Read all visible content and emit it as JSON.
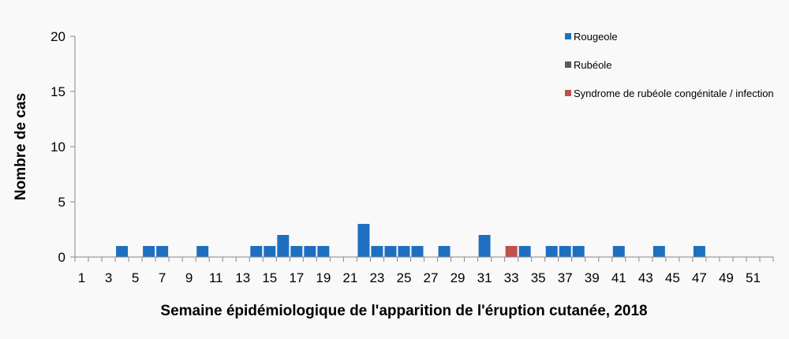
{
  "chart_data": {
    "type": "bar",
    "xlabel": "Semaine épidémiologique de l'apparition de l'éruption cutanée, 2018",
    "ylabel": "Nombre de cas",
    "ylim": [
      0,
      20
    ],
    "yticks": [
      "0",
      "5",
      "10",
      "15",
      "20"
    ],
    "xticks": [
      "1",
      "3",
      "5",
      "7",
      "9",
      "11",
      "13",
      "15",
      "17",
      "19",
      "21",
      "23",
      "25",
      "27",
      "29",
      "31",
      "33",
      "35",
      "37",
      "39",
      "41",
      "43",
      "45",
      "47",
      "49",
      "51"
    ],
    "categories": [
      1,
      2,
      3,
      4,
      5,
      6,
      7,
      8,
      9,
      10,
      11,
      12,
      13,
      14,
      15,
      16,
      17,
      18,
      19,
      20,
      21,
      22,
      23,
      24,
      25,
      26,
      27,
      28,
      29,
      30,
      31,
      32,
      33,
      34,
      35,
      36,
      37,
      38,
      39,
      40,
      41,
      42,
      43,
      44,
      45,
      46,
      47,
      48,
      49,
      50,
      51,
      52
    ],
    "grid": false,
    "stacked": true,
    "legend_position": "top-right",
    "series": [
      {
        "name": "Rougeole",
        "color": "#1f6fc1",
        "values": [
          0,
          0,
          0,
          1,
          0,
          1,
          1,
          0,
          0,
          1,
          0,
          0,
          0,
          1,
          1,
          2,
          1,
          1,
          1,
          0,
          0,
          3,
          1,
          1,
          1,
          1,
          0,
          1,
          0,
          0,
          2,
          0,
          0,
          1,
          0,
          1,
          1,
          1,
          0,
          0,
          1,
          0,
          0,
          1,
          0,
          0,
          1,
          0,
          0,
          0,
          0,
          0
        ]
      },
      {
        "name": "Rubéole",
        "color": "#5a5a5a",
        "values": [
          0,
          0,
          0,
          0,
          0,
          0,
          0,
          0,
          0,
          0,
          0,
          0,
          0,
          0,
          0,
          0,
          0,
          0,
          0,
          0,
          0,
          0,
          0,
          0,
          0,
          0,
          0,
          0,
          0,
          0,
          0,
          0,
          0,
          0,
          0,
          0,
          0,
          0,
          0,
          0,
          0,
          0,
          0,
          0,
          0,
          0,
          0,
          0,
          0,
          0,
          0,
          0
        ]
      },
      {
        "name": "Syndrome de rubéole congénitale / infection",
        "color": "#c0504d",
        "values": [
          0,
          0,
          0,
          0,
          0,
          0,
          0,
          0,
          0,
          0,
          0,
          0,
          0,
          0,
          0,
          0,
          0,
          0,
          0,
          0,
          0,
          0,
          0,
          0,
          0,
          0,
          0,
          0,
          0,
          0,
          0,
          0,
          1,
          0,
          0,
          0,
          0,
          0,
          0,
          0,
          0,
          0,
          0,
          0,
          0,
          0,
          0,
          0,
          0,
          0,
          0,
          0
        ]
      }
    ]
  }
}
